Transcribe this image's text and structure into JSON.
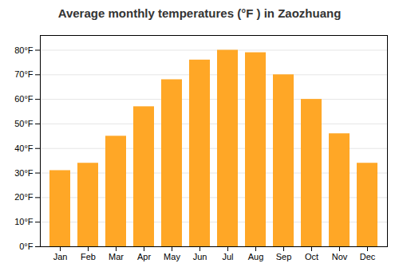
{
  "chart_data": {
    "type": "bar",
    "title": "Average monthly temperatures (°F ) in Zaozhuang",
    "categories": [
      "Jan",
      "Feb",
      "Mar",
      "Apr",
      "May",
      "Jun",
      "Jul",
      "Aug",
      "Sep",
      "Oct",
      "Nov",
      "Dec"
    ],
    "values": [
      31,
      34,
      45,
      57,
      68,
      76,
      80,
      79,
      70,
      60,
      46,
      34
    ],
    "color": "#FFA726",
    "ylim": [
      0,
      86
    ],
    "yticks": [
      {
        "value": 0,
        "label": "0°F"
      },
      {
        "value": 10,
        "label": "10°F"
      },
      {
        "value": 20,
        "label": "20°F"
      },
      {
        "value": 30,
        "label": "30°F"
      },
      {
        "value": 40,
        "label": "40°F"
      },
      {
        "value": 50,
        "label": "50°F"
      },
      {
        "value": 60,
        "label": "60°F"
      },
      {
        "value": 70,
        "label": "70°F"
      },
      {
        "value": 80,
        "label": "80°F"
      }
    ],
    "grid": true
  }
}
